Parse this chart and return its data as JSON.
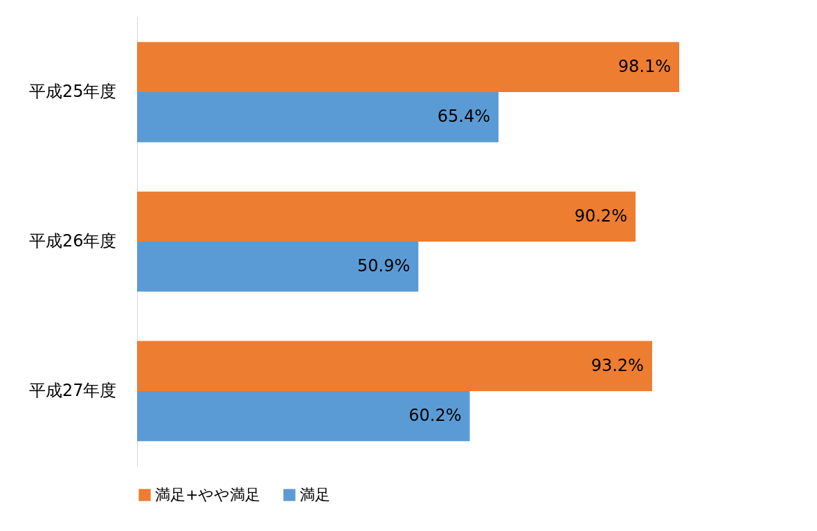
{
  "chart_data": {
    "type": "bar",
    "orientation": "horizontal",
    "categories": [
      "平成25年度",
      "平成26年度",
      "平成27年度"
    ],
    "series": [
      {
        "name": "満足+やや満足",
        "color": "#ed7d31",
        "values": [
          98.1,
          90.2,
          93.2
        ],
        "value_labels": [
          "98.1%",
          "90.2%",
          "93.2%"
        ]
      },
      {
        "name": "満足",
        "color": "#5b9bd5",
        "values": [
          65.4,
          50.9,
          60.2
        ],
        "value_labels": [
          "65.4%",
          "50.9%",
          "60.2%"
        ]
      }
    ],
    "legend": "bottom"
  }
}
